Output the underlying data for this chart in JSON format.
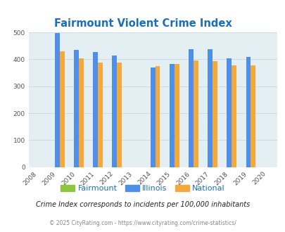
{
  "title": "Fairmount Violent Crime Index",
  "years": [
    2009,
    2010,
    2011,
    2012,
    2014,
    2015,
    2016,
    2017,
    2018,
    2019
  ],
  "fairmount": [
    0,
    0,
    0,
    0,
    0,
    0,
    0,
    0,
    0,
    0
  ],
  "illinois": [
    499,
    434,
    428,
    414,
    370,
    383,
    438,
    438,
    405,
    408
  ],
  "national": [
    430,
    405,
    387,
    387,
    376,
    383,
    397,
    394,
    379,
    379
  ],
  "color_fairmount": "#8dc63f",
  "color_illinois": "#4f8fea",
  "color_national": "#f5a93a",
  "color_bg_chart": "#e4eff4",
  "color_title": "#1a6fba",
  "color_grid": "#c5d8e0",
  "color_tick": "#555555",
  "xlim_min": 2008,
  "xlim_max": 2020,
  "ylim_min": 0,
  "ylim_max": 500,
  "yticks": [
    0,
    100,
    200,
    300,
    400,
    500
  ],
  "xticks": [
    2008,
    2009,
    2010,
    2011,
    2012,
    2013,
    2014,
    2015,
    2016,
    2017,
    2018,
    2019,
    2020
  ],
  "subtitle": "Crime Index corresponds to incidents per 100,000 inhabitants",
  "footer": "© 2025 CityRating.com - https://www.cityrating.com/crime-statistics/",
  "bar_width": 0.25,
  "figwidth": 4.06,
  "figheight": 3.3,
  "dpi": 100
}
